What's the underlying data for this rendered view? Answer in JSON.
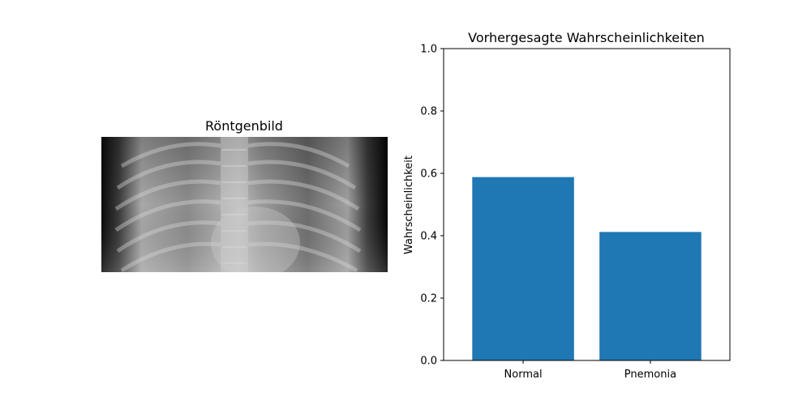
{
  "image_panel": {
    "title": "Röntgenbild"
  },
  "chart_data": {
    "type": "bar",
    "title": "Vorhergesagte Wahrscheinlichkeiten",
    "xlabel": "",
    "ylabel": "Wahrscheinlichkeit",
    "categories": [
      "Normal",
      "Pnemonia"
    ],
    "values": [
      0.588,
      0.412
    ],
    "ylim": [
      0,
      1.0
    ],
    "yticks": [
      "0.0",
      "0.2",
      "0.4",
      "0.6",
      "0.8",
      "1.0"
    ],
    "grid": false,
    "bar_color": "#1f77b4"
  }
}
